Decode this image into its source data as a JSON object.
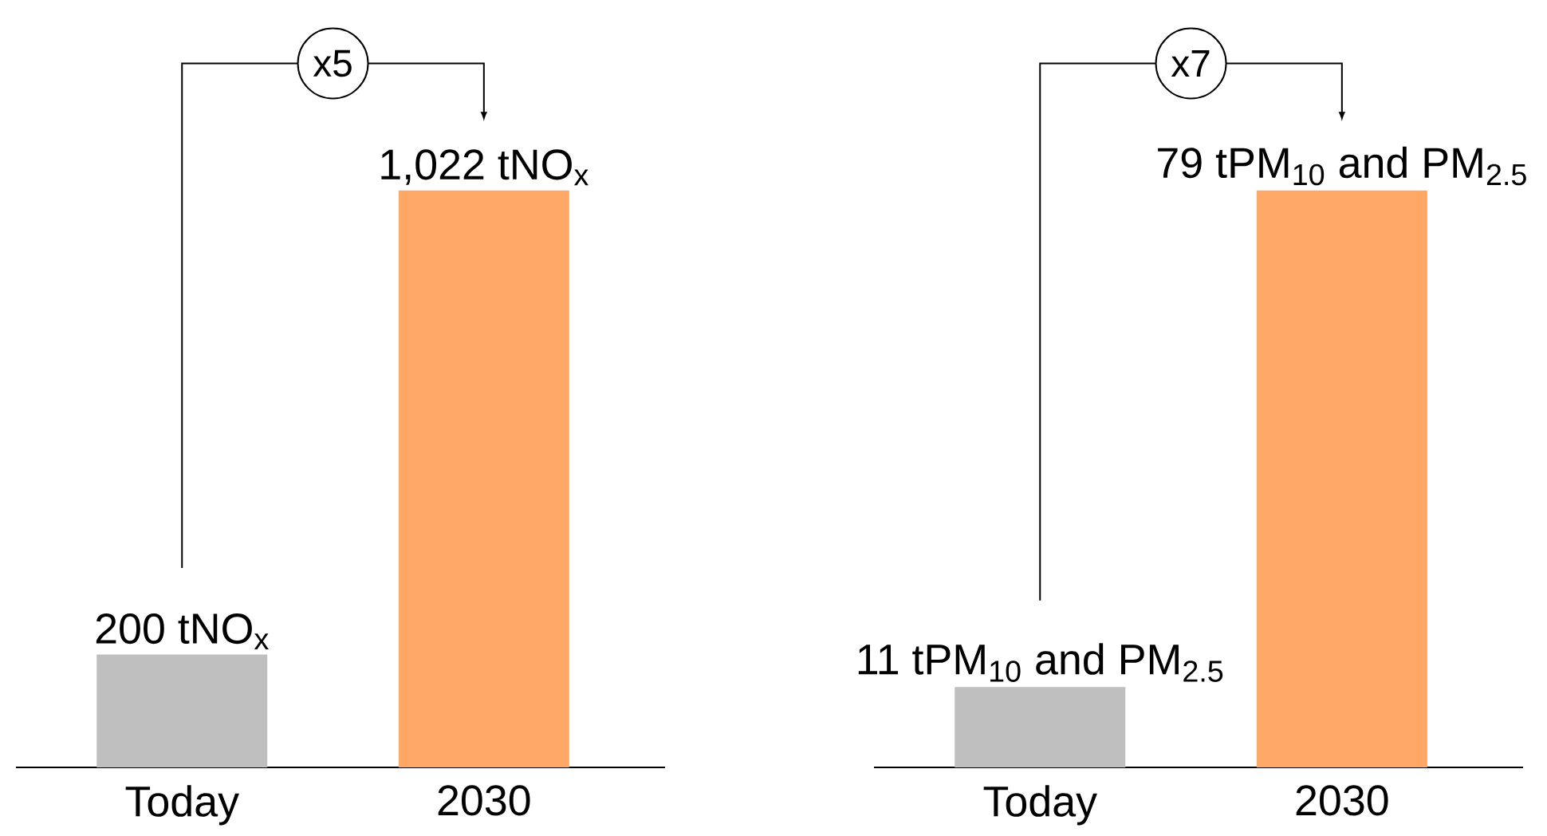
{
  "chart_data": [
    {
      "type": "bar",
      "categories": [
        "Today",
        "2030"
      ],
      "values": [
        200,
        1022
      ],
      "colors": [
        "#bfbfbf",
        "#ffa764"
      ],
      "value_labels": [
        "200 tNO$_{x}$",
        "1,022 tNO$_{x}$"
      ],
      "annotations": [
        "x5"
      ]
    },
    {
      "type": "bar",
      "categories": [
        "Today",
        "2030"
      ],
      "values": [
        11,
        79
      ],
      "colors": [
        "#bfbfbf",
        "#ffa764"
      ],
      "value_labels": [
        "11 tPM$_{10}$ and PM$_{2.5}$",
        "79 tPM$_{10}$ and PM$_{2.5}$"
      ],
      "annotations": [
        "x7"
      ]
    }
  ]
}
